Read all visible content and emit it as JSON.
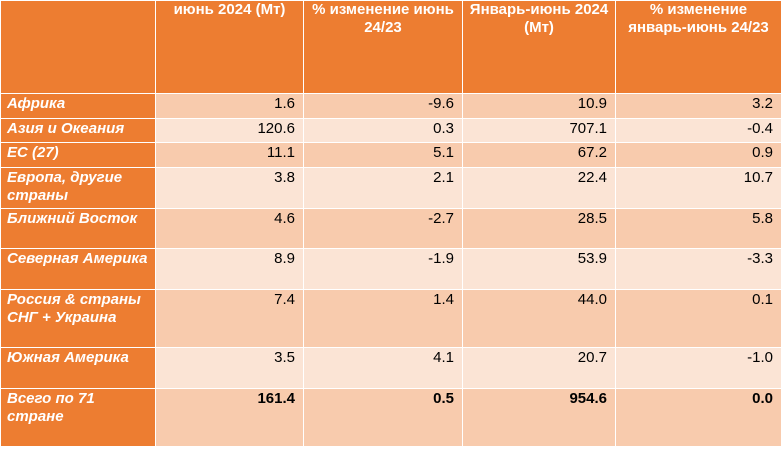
{
  "colors": {
    "header_bg": "#ED7D31",
    "row_dark": "#F8CBAD",
    "row_light": "#FBE4D5",
    "header_text": "#FFFFFF"
  },
  "headers": [
    "",
    "июнь 2024 (Мт)",
    "% изменение июнь 24/23",
    "Январь-июнь 2024 (Мт)",
    "% изменение январь-июнь 24/23"
  ],
  "rows": [
    {
      "region": "Африка",
      "values": [
        "1.6",
        "-9.6",
        "10.9",
        "3.2"
      ]
    },
    {
      "region": "Азия и Океания",
      "values": [
        "120.6",
        "0.3",
        "707.1",
        "-0.4"
      ]
    },
    {
      "region": "ЕС (27)",
      "values": [
        "11.1",
        "5.1",
        "67.2",
        "0.9"
      ]
    },
    {
      "region": "Европа, другие страны",
      "values": [
        "3.8",
        "2.1",
        "22.4",
        "10.7"
      ]
    },
    {
      "region": "Ближний Восток",
      "values": [
        "4.6",
        "-2.7",
        "28.5",
        "5.8"
      ]
    },
    {
      "region": "Северная Америка",
      "values": [
        "8.9",
        "-1.9",
        "53.9",
        "-3.3"
      ]
    },
    {
      "region": "Россия & страны СНГ + Украина",
      "values": [
        "7.4",
        "1.4",
        "44.0",
        "0.1"
      ]
    },
    {
      "region": "Южная Америка",
      "values": [
        "3.5",
        "4.1",
        "20.7",
        "-1.0"
      ]
    },
    {
      "region": "Всего по 71 стране",
      "values": [
        "161.4",
        "0.5",
        "954.6",
        "0.0"
      ]
    }
  ]
}
